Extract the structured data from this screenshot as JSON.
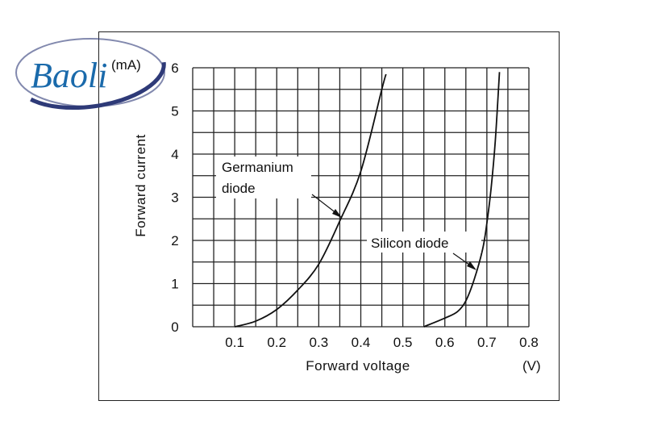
{
  "logo": {
    "text": "Baoli",
    "colors": {
      "text": "#1a6aab",
      "swoosh": "#2e3a78"
    }
  },
  "chart_data": {
    "type": "line",
    "title": "",
    "xlabel": "Forward voltage",
    "xunit": "(V)",
    "ylabel": "Forward current",
    "yunit": "(mA)",
    "xlim": [
      0,
      0.8
    ],
    "ylim": [
      0,
      6
    ],
    "xticks": [
      "0.1",
      "0.2",
      "0.3",
      "0.4",
      "0.5",
      "0.6",
      "0.7",
      "0.8"
    ],
    "yticks": [
      "0",
      "1",
      "2",
      "3",
      "4",
      "5",
      "6"
    ],
    "grid": true,
    "series": [
      {
        "name": "Germanium diode",
        "label": [
          "Germanium",
          "diode"
        ],
        "x": [
          0.1,
          0.15,
          0.2,
          0.25,
          0.3,
          0.35,
          0.4,
          0.45,
          0.46
        ],
        "y": [
          0,
          0.13,
          0.4,
          0.85,
          1.45,
          2.45,
          3.6,
          5.5,
          5.85
        ]
      },
      {
        "name": "Silicon diode",
        "label": [
          "Silicon diode"
        ],
        "x": [
          0.55,
          0.6,
          0.63,
          0.65,
          0.67,
          0.69,
          0.7,
          0.71,
          0.72,
          0.73
        ],
        "y": [
          0,
          0.2,
          0.35,
          0.6,
          1.1,
          1.8,
          2.4,
          3.2,
          4.3,
          5.9
        ]
      }
    ]
  }
}
